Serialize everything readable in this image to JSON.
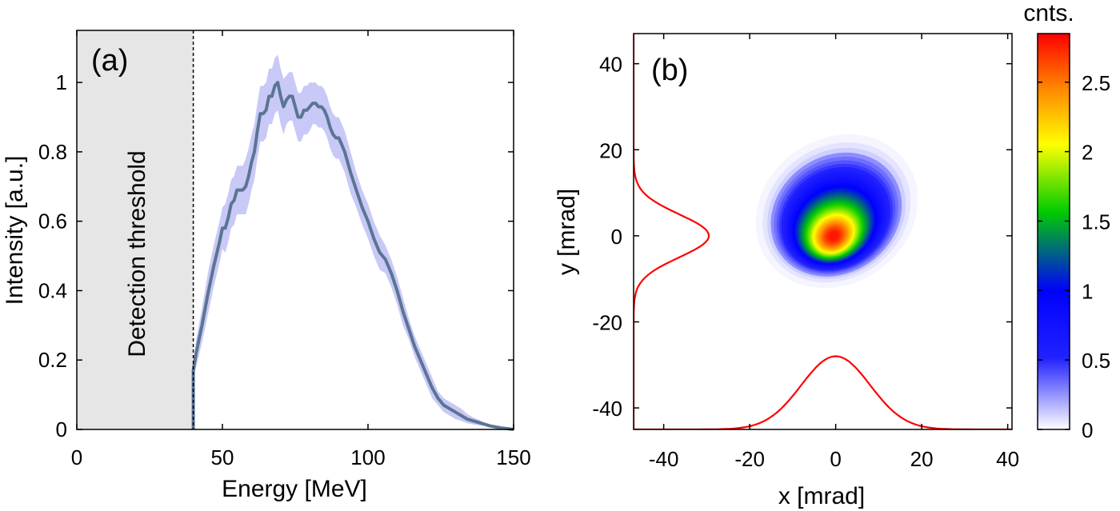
{
  "chart_data": [
    {
      "type": "line",
      "panel_label": "(a)",
      "xlabel": "Energy [MeV]",
      "ylabel": "Intensity [a.u.]",
      "xlim": [
        0,
        150
      ],
      "ylim": [
        0,
        1.15
      ],
      "xticks": [
        0,
        50,
        100,
        150
      ],
      "yticks": [
        0,
        0.2,
        0.4,
        0.6,
        0.8,
        1
      ],
      "xtick_labels": [
        "0",
        "50",
        "100",
        "150"
      ],
      "ytick_labels": [
        "0",
        "0.2",
        "0.4",
        "0.6",
        "0.8",
        "1"
      ],
      "shaded_region": {
        "x_from": 0,
        "x_to": 40,
        "label": "Detection threshold",
        "color": "#e6e6e6"
      },
      "threshold_line_x": 40,
      "series": [
        {
          "color": "#5b7594",
          "band_color": "#c9c9f7",
          "x": [
            40,
            40,
            41,
            43,
            45,
            47,
            49,
            50,
            51,
            52,
            53,
            54,
            55,
            56,
            57,
            58,
            59,
            60,
            61,
            62,
            63,
            64,
            65,
            66,
            67,
            68,
            69,
            70,
            71,
            72,
            73,
            74,
            75,
            76,
            77,
            78,
            79,
            80,
            81,
            82,
            83,
            84,
            85,
            86,
            87,
            88,
            89,
            90,
            92,
            94,
            96,
            98,
            100,
            102,
            104,
            106,
            108,
            110,
            112,
            114,
            116,
            118,
            120,
            122,
            124,
            126,
            128,
            130,
            132,
            134,
            136,
            138,
            140,
            142,
            144,
            146,
            148,
            150
          ],
          "y": [
            0.0,
            0.17,
            0.22,
            0.3,
            0.39,
            0.47,
            0.54,
            0.58,
            0.58,
            0.61,
            0.65,
            0.66,
            0.69,
            0.69,
            0.69,
            0.7,
            0.73,
            0.77,
            0.8,
            0.86,
            0.91,
            0.91,
            0.92,
            0.96,
            0.96,
            0.99,
            1.0,
            0.96,
            0.93,
            0.95,
            0.96,
            0.96,
            0.93,
            0.9,
            0.9,
            0.92,
            0.92,
            0.93,
            0.94,
            0.94,
            0.93,
            0.93,
            0.92,
            0.9,
            0.87,
            0.85,
            0.84,
            0.84,
            0.8,
            0.74,
            0.69,
            0.64,
            0.6,
            0.55,
            0.51,
            0.49,
            0.45,
            0.4,
            0.34,
            0.29,
            0.24,
            0.2,
            0.16,
            0.12,
            0.09,
            0.07,
            0.06,
            0.05,
            0.04,
            0.03,
            0.025,
            0.02,
            0.015,
            0.01,
            0.007,
            0.004,
            0.002,
            0.0
          ],
          "band_upper": [
            0.0,
            0.19,
            0.26,
            0.35,
            0.45,
            0.53,
            0.6,
            0.64,
            0.65,
            0.68,
            0.72,
            0.73,
            0.76,
            0.76,
            0.76,
            0.78,
            0.81,
            0.85,
            0.88,
            0.94,
            0.99,
            0.99,
            1.0,
            1.04,
            1.04,
            1.07,
            1.08,
            1.04,
            1.01,
            1.02,
            1.03,
            1.03,
            1.0,
            0.97,
            0.97,
            0.99,
            0.99,
            1.0,
            1.0,
            1.0,
            0.99,
            0.99,
            0.98,
            0.96,
            0.93,
            0.91,
            0.9,
            0.9,
            0.86,
            0.8,
            0.74,
            0.69,
            0.65,
            0.6,
            0.56,
            0.53,
            0.49,
            0.44,
            0.38,
            0.32,
            0.27,
            0.23,
            0.19,
            0.15,
            0.11,
            0.09,
            0.08,
            0.07,
            0.06,
            0.045,
            0.035,
            0.028,
            0.02,
            0.014,
            0.01,
            0.006,
            0.003,
            0.0
          ],
          "band_lower": [
            0.0,
            0.15,
            0.18,
            0.25,
            0.33,
            0.41,
            0.48,
            0.52,
            0.51,
            0.54,
            0.58,
            0.59,
            0.62,
            0.62,
            0.62,
            0.62,
            0.65,
            0.69,
            0.72,
            0.78,
            0.83,
            0.83,
            0.84,
            0.88,
            0.88,
            0.91,
            0.92,
            0.88,
            0.85,
            0.88,
            0.89,
            0.89,
            0.86,
            0.83,
            0.83,
            0.85,
            0.85,
            0.86,
            0.88,
            0.88,
            0.87,
            0.87,
            0.86,
            0.84,
            0.81,
            0.79,
            0.78,
            0.78,
            0.74,
            0.68,
            0.64,
            0.59,
            0.55,
            0.5,
            0.46,
            0.45,
            0.41,
            0.36,
            0.3,
            0.26,
            0.21,
            0.17,
            0.13,
            0.09,
            0.07,
            0.05,
            0.04,
            0.03,
            0.025,
            0.018,
            0.015,
            0.012,
            0.01,
            0.006,
            0.004,
            0.002,
            0.001,
            0.0
          ]
        }
      ]
    },
    {
      "type": "heatmap",
      "panel_label": "(b)",
      "xlabel": "x [mrad]",
      "ylabel": "y [mrad]",
      "xlim": [
        -47,
        41
      ],
      "ylim": [
        -45,
        47
      ],
      "xticks": [
        -40,
        -20,
        0,
        20,
        40
      ],
      "yticks": [
        -40,
        -20,
        0,
        20,
        40
      ],
      "xtick_labels": [
        "-40",
        "-20",
        "0",
        "20",
        "40"
      ],
      "ytick_labels": [
        "-40",
        "-20",
        "0",
        "20",
        "40"
      ],
      "peak_center": [
        -0.5,
        0
      ],
      "peak_value": 2.85,
      "colorbar": {
        "title": "cnts.",
        "min": 0,
        "max": 2.85,
        "ticks": [
          0,
          0.5,
          1,
          1.5,
          2,
          2.5
        ],
        "tick_labels": [
          "0",
          "0.5",
          "1",
          "1.5",
          "2",
          "2.5"
        ],
        "colors": [
          "#ffffff",
          "#2222ff",
          "#0000ff",
          "#00cc00",
          "#ffff00",
          "#ff8800",
          "#ff0000"
        ],
        "color_stops": [
          0,
          0.18,
          0.35,
          0.55,
          0.72,
          0.86,
          1.0
        ]
      },
      "projections": [
        {
          "axis": "x",
          "color": "#ff0000",
          "center": 0,
          "baseline_y": -45,
          "peak_y": -28,
          "sigma": 8
        },
        {
          "axis": "y",
          "color": "#ff0000",
          "center": 0,
          "baseline_x": -47,
          "peak_x": -29.5,
          "sigma": 5
        }
      ]
    }
  ]
}
